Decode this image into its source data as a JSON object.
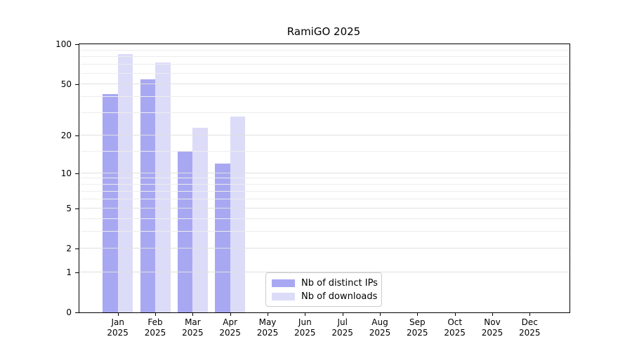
{
  "title": "RamiGO 2025",
  "chart_data": {
    "type": "bar",
    "title": "RamiGO 2025",
    "scale": "log10(value+1), 0 at baseline",
    "ylim": [
      0,
      100
    ],
    "y_major_ticks": [
      0,
      1,
      2,
      5,
      10,
      20,
      50,
      100
    ],
    "y_minor_gridlines": [
      3,
      4,
      6,
      7,
      8,
      9,
      15,
      30,
      40,
      60,
      70,
      80,
      90
    ],
    "categories": [
      "Jan",
      "Feb",
      "Mar",
      "Apr",
      "May",
      "Jun",
      "Jul",
      "Aug",
      "Sep",
      "Oct",
      "Nov",
      "Dec"
    ],
    "category_year": "2025",
    "grid": "on",
    "legend_position": "bottom-center-inside",
    "series": [
      {
        "name": "Nb of distinct IPs",
        "color": "#a8a8f2",
        "values": [
          42,
          54,
          15,
          12,
          0,
          0,
          0,
          0,
          0,
          0,
          0,
          0
        ]
      },
      {
        "name": "Nb of downloads",
        "color": "#dcdcf9",
        "values": [
          84,
          73,
          23,
          28,
          0,
          0,
          0,
          0,
          0,
          0,
          0,
          0
        ]
      }
    ]
  },
  "colors": {
    "spine": "#000000",
    "gridline_minor": "#ededed",
    "gridline_major": "#e0e0e0",
    "legend_border": "#cccccc",
    "background": "#ffffff",
    "text": "#000000"
  }
}
